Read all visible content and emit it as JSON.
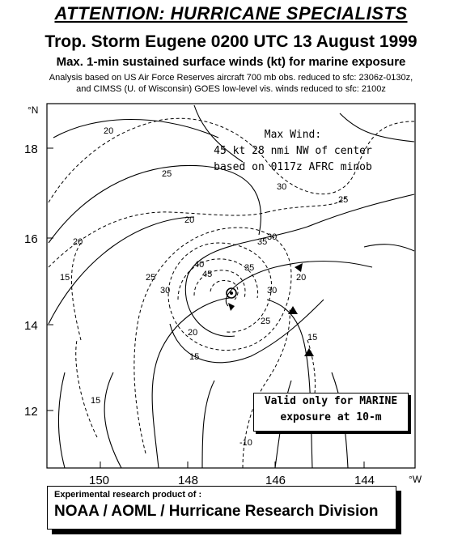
{
  "header": {
    "attention": "ATTENTION: HURRICANE SPECIALISTS",
    "title": "Trop. Storm Eugene 0200 UTC 13 August 1999",
    "subtitle": "Max. 1-min sustained surface winds (kt) for marine exposure",
    "note_line1": "Analysis based on US Air Force Reserves aircraft 700 mb obs. reduced to sfc: 2306z-0130z,",
    "note_line2": "and CIMSS (U. of Wisconsin) GOES low-level vis. winds reduced to sfc: 2100z"
  },
  "map": {
    "lat_ticks": [
      "18",
      "16",
      "14",
      "12"
    ],
    "lat_unit": "°N",
    "lon_ticks": [
      "150",
      "148",
      "146",
      "144"
    ],
    "lon_unit": "°W",
    "contour_labels": [
      "20",
      "25",
      "30",
      "20",
      "15",
      "25",
      "20",
      "30",
      "35",
      "40",
      "45",
      "35",
      "30",
      "25",
      "20",
      "20",
      "15",
      "15",
      "15",
      "-10",
      "25",
      "30"
    ]
  },
  "max_wind": {
    "line1": "Max Wind:",
    "line2": "45 kt 28 nmi  NW of center",
    "line3": "based on 0117z AFRC minob"
  },
  "valid_box": {
    "line1": "Valid only for MARINE",
    "line2": "exposure at 10-m"
  },
  "credit": {
    "line1": "Experimental research product of :",
    "line2": "NOAA / AOML / Hurricane Research Division"
  }
}
